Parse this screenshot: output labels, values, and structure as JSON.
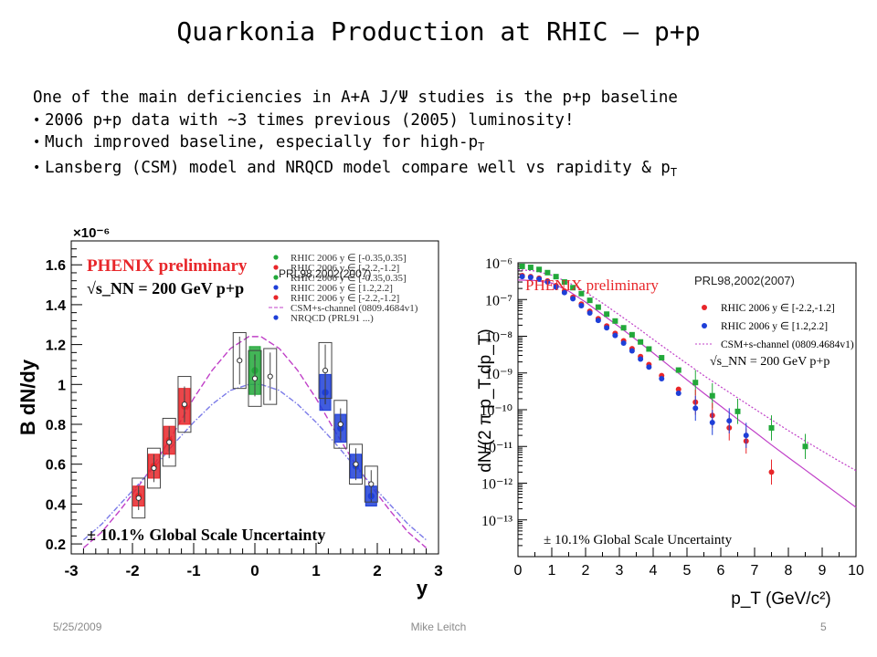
{
  "slide": {
    "title": "Quarkonia Production at RHIC – p+p",
    "intro": "One of the main deficiencies in A+A J/Ψ studies is the p+p baseline",
    "bullets": [
      {
        "text": "2006 p+p data with ~3 times previous (2005) luminosity!",
        "sub": ""
      },
      {
        "text": "Much improved baseline, especially for high-p",
        "sub": "T"
      },
      {
        "text": "Lansberg (CSM) model and NRQCD model compare well vs rapidity & p",
        "sub": "T"
      }
    ],
    "footer": {
      "date": "5/25/2009",
      "author": "Mike Leitch",
      "page": "5"
    }
  },
  "colors": {
    "red": "#e8262a",
    "green": "#22a83a",
    "blue": "#1e3fd8",
    "open": "#555555",
    "csm": "#c040c8",
    "nrqcd": "#7a7ae8"
  },
  "chart_data": [
    {
      "type": "scatter",
      "panel_label": "PHENIX preliminary",
      "energy_label": "√s_NN = 200 GeV p+p",
      "ref_label": "PRL98,2002(2007)",
      "ylabel": "B dN/dy",
      "xlabel": "y",
      "y_multiplier": "×10⁻⁶",
      "xlim": [
        -3,
        3
      ],
      "ylim": [
        0.15,
        1.72
      ],
      "xticks": [
        "-3",
        "-2",
        "-1",
        "0",
        "1",
        "2",
        "3"
      ],
      "yticks": [
        "0.2",
        "0.4",
        "0.6",
        "0.8",
        "1",
        "1.2",
        "1.4",
        "1.6"
      ],
      "global_unc": "± 10.1% Global Scale Uncertainty",
      "legend": [
        "RHIC 2006 y ∈ [-0.35,0.35]",
        "RHIC 2006 y ∈ [-2.2,-1.2]",
        "RHIC 2006 y ∈ [-0.35,0.35]",
        "RHIC 2006 y ∈ [1.2,2.2]",
        "RHIC 2006 y ∈ [-2.2,-1.2]",
        "CSM+s-channel (0809.4684v1)",
        "NRQCD (PRL91 ...)"
      ],
      "series": [
        {
          "name": "RHIC 2006 y ∈ [-2.2,-1.2]",
          "color": "red",
          "x": [
            -1.9,
            -1.65,
            -1.4,
            -1.15
          ],
          "y": [
            0.44,
            0.59,
            0.72,
            0.89
          ],
          "err": [
            0.03,
            0.04,
            0.05,
            0.06
          ],
          "sys": [
            0.05,
            0.06,
            0.07,
            0.09
          ]
        },
        {
          "name": "RHIC 2006 y ∈ [-0.35,0.35]",
          "color": "green",
          "x": [
            0.0
          ],
          "y": [
            1.07
          ],
          "err": [
            0.08
          ],
          "sys": [
            0.12
          ]
        },
        {
          "name": "RHIC 2006 y ∈ [1.2,2.2]",
          "color": "blue",
          "x": [
            1.15,
            1.4,
            1.65,
            1.9
          ],
          "y": [
            0.96,
            0.78,
            0.59,
            0.44
          ],
          "err": [
            0.06,
            0.05,
            0.04,
            0.03
          ],
          "sys": [
            0.09,
            0.07,
            0.06,
            0.05
          ]
        },
        {
          "name": "PRL98,2002(2007)",
          "color": "open",
          "x": [
            -1.9,
            -1.65,
            -1.4,
            -1.15,
            -0.25,
            0.0,
            0.25,
            1.15,
            1.4,
            1.65,
            1.9
          ],
          "y": [
            0.43,
            0.58,
            0.71,
            0.9,
            1.12,
            1.03,
            1.04,
            1.07,
            0.8,
            0.6,
            0.5
          ],
          "err": [
            0.06,
            0.07,
            0.08,
            0.09,
            0.12,
            0.09,
            0.12,
            0.13,
            0.08,
            0.08,
            0.07
          ],
          "sys": [
            0.1,
            0.1,
            0.12,
            0.14,
            0.14,
            0.14,
            0.14,
            0.14,
            0.12,
            0.1,
            0.09
          ]
        }
      ],
      "curves": [
        {
          "name": "CSM+s-channel (0809.4684v1)",
          "color": "csm",
          "x": [
            -2.8,
            -2.5,
            -2.2,
            -1.9,
            -1.6,
            -1.3,
            -1.0,
            -0.7,
            -0.4,
            -0.1,
            0.1,
            0.4,
            0.7,
            1.0,
            1.3,
            1.6,
            1.9,
            2.2,
            2.5,
            2.8
          ],
          "y": [
            0.18,
            0.26,
            0.37,
            0.49,
            0.62,
            0.77,
            0.93,
            1.07,
            1.18,
            1.24,
            1.24,
            1.18,
            1.07,
            0.93,
            0.77,
            0.62,
            0.49,
            0.37,
            0.26,
            0.18
          ]
        },
        {
          "name": "NRQCD",
          "color": "nrqcd",
          "x": [
            -2.8,
            -2.5,
            -2.2,
            -1.9,
            -1.6,
            -1.3,
            -1.0,
            -0.7,
            -0.4,
            -0.1,
            0.1,
            0.4,
            0.7,
            1.0,
            1.3,
            1.6,
            1.9,
            2.2,
            2.5,
            2.8
          ],
          "y": [
            0.22,
            0.3,
            0.4,
            0.5,
            0.6,
            0.71,
            0.81,
            0.9,
            0.97,
            1.0,
            1.0,
            0.97,
            0.9,
            0.81,
            0.71,
            0.6,
            0.5,
            0.4,
            0.3,
            0.22
          ]
        }
      ]
    },
    {
      "type": "scatter",
      "yscale": "log",
      "panel_label": "PHENIX preliminary",
      "energy_label": "√s_NN = 200 GeV p+p",
      "ref_label": "PRL98,2002(2007)",
      "ylabel": "dN/(2 π p_T dp_T)",
      "xlabel": "p_T (GeV/c²)",
      "xlim": [
        0,
        10
      ],
      "ylim": [
        1e-14,
        1e-06
      ],
      "xticks": [
        "0",
        "1",
        "2",
        "3",
        "4",
        "5",
        "6",
        "7",
        "8",
        "9",
        "10"
      ],
      "yticks": [
        "10⁻⁶",
        "10⁻⁷",
        "10⁻⁸",
        "10⁻⁹",
        "10⁻¹⁰",
        "10⁻¹¹",
        "10⁻¹²",
        "10⁻¹³"
      ],
      "global_unc": "± 10.1% Global Scale Uncertainty",
      "legend": [
        "RHIC 2006 y ∈ [-2.2,-1.2]",
        "RHIC 2006 y ∈ [1.2,2.2]",
        "CSM+s-channel (0809.4684v1)"
      ],
      "series": [
        {
          "name": "RHIC 2006 y ∈ [-0.35,0.35]",
          "color": "green",
          "x": [
            0.125,
            0.375,
            0.625,
            0.875,
            1.125,
            1.375,
            1.625,
            1.875,
            2.125,
            2.375,
            2.625,
            2.875,
            3.125,
            3.375,
            3.625,
            3.875,
            4.25,
            4.75,
            5.25,
            5.75,
            6.5,
            7.5,
            8.5
          ],
          "y": [
            8e-07,
            7.5e-07,
            6.6e-07,
            5.4e-07,
            4.2e-07,
            3e-07,
            2.1e-07,
            1.45e-07,
            9.5e-08,
            6.2e-08,
            4e-08,
            2.6e-08,
            1.7e-08,
            1.1e-08,
            7e-09,
            4.5e-09,
            2.6e-09,
            1.2e-09,
            5.5e-10,
            2.4e-10,
            9e-11,
            3.2e-11,
            1e-11
          ]
        },
        {
          "name": "RHIC 2006 y ∈ [-2.2,-1.2]",
          "color": "red",
          "x": [
            0.125,
            0.375,
            0.625,
            0.875,
            1.125,
            1.375,
            1.625,
            1.875,
            2.125,
            2.375,
            2.625,
            2.875,
            3.125,
            3.375,
            3.625,
            3.875,
            4.25,
            4.75,
            5.25,
            5.75,
            6.25,
            6.75,
            7.5
          ],
          "y": [
            4.5e-07,
            4.2e-07,
            3.8e-07,
            3.2e-07,
            2.4e-07,
            1.7e-07,
            1.15e-07,
            7.5e-08,
            4.8e-08,
            3e-08,
            1.9e-08,
            1.2e-08,
            7.5e-09,
            4.6e-09,
            2.8e-09,
            1.7e-09,
            8.5e-10,
            3.6e-10,
            1.6e-10,
            7e-11,
            3.2e-11,
            1.4e-11,
            2e-12
          ]
        },
        {
          "name": "RHIC 2006 y ∈ [1.2,2.2]",
          "color": "blue",
          "x": [
            0.125,
            0.375,
            0.625,
            0.875,
            1.125,
            1.375,
            1.625,
            1.875,
            2.125,
            2.375,
            2.625,
            2.875,
            3.125,
            3.375,
            3.625,
            3.875,
            4.25,
            4.75,
            5.25,
            5.75,
            6.25,
            6.75
          ],
          "y": [
            4.2e-07,
            4e-07,
            3.6e-07,
            3e-07,
            2.2e-07,
            1.55e-07,
            1.05e-07,
            6.8e-08,
            4.3e-08,
            2.7e-08,
            1.7e-08,
            1.05e-08,
            6.5e-09,
            4e-09,
            2.4e-09,
            1.45e-09,
            7e-10,
            2.8e-10,
            1.1e-10,
            4.5e-11,
            5e-11,
            2e-11
          ]
        }
      ],
      "curves": [
        {
          "name": "CSM+s-channel upper",
          "color": "csm",
          "x": [
            0,
            0.5,
            1,
            1.5,
            2,
            2.5,
            3,
            3.5,
            4,
            4.5,
            5,
            5.5,
            6,
            6.5,
            7,
            7.5,
            8,
            8.5,
            9,
            9.5,
            10
          ],
          "y": [
            6.5e-07,
            6e-07,
            4.6e-07,
            2.9e-07,
            1.6e-07,
            8e-08,
            3.8e-08,
            1.8e-08,
            8.2e-09,
            3.8e-09,
            1.8e-09,
            8.5e-10,
            4.2e-10,
            2.1e-10,
            1.05e-10,
            5.3e-11,
            2.7e-11,
            1.4e-11,
            7.5e-12,
            4e-12,
            2.2e-12
          ]
        },
        {
          "name": "CSM+s-channel lower",
          "color": "csm",
          "x": [
            0,
            0.5,
            1,
            1.5,
            2,
            2.5,
            3,
            3.5,
            4,
            4.5,
            5,
            5.5,
            6,
            6.5,
            7,
            7.5,
            8,
            8.5,
            9,
            9.5,
            10
          ],
          "y": [
            3.4e-07,
            3.3e-07,
            2.8e-07,
            1.7e-07,
            8.5e-08,
            3.9e-08,
            1.8e-08,
            8e-09,
            3.5e-09,
            1.5e-09,
            6.5e-10,
            2.8e-10,
            1.25e-10,
            5.5e-11,
            2.5e-11,
            1.1e-11,
            5e-12,
            2.3e-12,
            1.05e-12,
            4.8e-13,
            2.2e-13
          ]
        }
      ]
    }
  ]
}
